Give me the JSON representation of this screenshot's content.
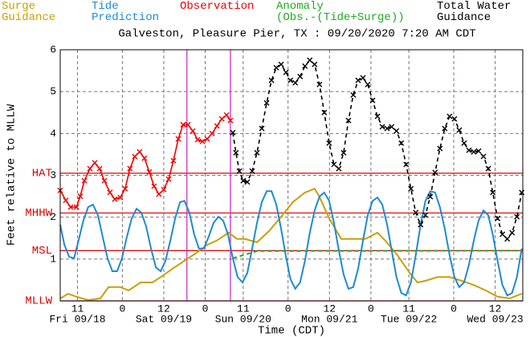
{
  "chart_data": {
    "type": "line",
    "title": "Galveston, Pleasure Pier, TX : 09/20/2020 7:20 AM CDT",
    "xlabel": "Time (CDT)",
    "ylabel": "Feet relative to MLLW",
    "xlim": [
      6,
      140
    ],
    "ylim": [
      0,
      6
    ],
    "yticks": [
      1,
      2,
      3,
      4,
      5,
      6
    ],
    "xticks": [
      11,
      {
        "value": 24,
        "label": "0"
      },
      {
        "value": 36,
        "label": "12"
      },
      {
        "value": 48,
        "label": "0"
      },
      {
        "value": 59,
        "label": "11"
      },
      {
        "value": 72,
        "label": "0"
      },
      {
        "value": 84,
        "label": "12"
      },
      {
        "value": 96,
        "label": "0"
      },
      {
        "value": 107,
        "label": "11"
      },
      {
        "value": 120,
        "label": "0"
      },
      {
        "value": 132,
        "label": "12"
      }
    ],
    "day_labels": [
      {
        "value": 11,
        "label": "Fri 09/18"
      },
      {
        "value": 36,
        "label": "Sat 09/19"
      },
      {
        "value": 59,
        "label": "Sun 09/20"
      },
      {
        "value": 84,
        "label": "Mon 09/21"
      },
      {
        "value": 107,
        "label": "Tue 09/22"
      },
      {
        "value": 132,
        "label": "Wed 09/23"
      }
    ],
    "grid": true,
    "datums": [
      {
        "name": "HAT",
        "value": 3.05
      },
      {
        "name": "MHHW",
        "value": 2.1
      },
      {
        "name": "MSL",
        "value": 1.2
      },
      {
        "name": "MLLW",
        "value": 0
      }
    ],
    "datum_color": "#dd0000",
    "markers": [
      42.7,
      55.3
    ],
    "marker_color": "#cc33cc",
    "series": [
      {
        "name": "Surge\nGuidance",
        "color": "#c8a000",
        "dash": false,
        "marker": null,
        "x": [
          6,
          8.3,
          10.7,
          14.1,
          17.6,
          20.0,
          23.4,
          25.8,
          29.3,
          32.7,
          35.1,
          38.6,
          42.0,
          45.5,
          48.6,
          51.3,
          54.8,
          57.2,
          59.5,
          63.0,
          66.5,
          70.0,
          73.4,
          76.9,
          79.7,
          81.1,
          83.9,
          87.4,
          90.9,
          94.4,
          97.9,
          100.2,
          103.7,
          107.2,
          109.5,
          111.8,
          115.3,
          118.8,
          122.3,
          125.8,
          129.3,
          132.7,
          136.2,
          139.7
        ],
        "values": [
          0.06,
          0.17,
          0.1,
          0.02,
          0.06,
          0.33,
          0.33,
          0.25,
          0.44,
          0.44,
          0.57,
          0.77,
          0.96,
          1.15,
          1.34,
          1.44,
          1.63,
          1.48,
          1.48,
          1.4,
          1.67,
          2.01,
          2.36,
          2.59,
          2.68,
          2.49,
          1.97,
          1.48,
          1.48,
          1.48,
          1.63,
          1.44,
          1.09,
          0.67,
          0.44,
          0.48,
          0.57,
          0.57,
          0.48,
          0.38,
          0.25,
          0.1,
          0.06,
          0.17
        ]
      },
      {
        "name": "Tide\nPrediction",
        "color": "#1e8ad2",
        "dash": false,
        "marker": null,
        "x": [
          6,
          7.2,
          8.6,
          10.0,
          11.3,
          12.7,
          14.1,
          15.5,
          16.9,
          18.3,
          19.7,
          21.1,
          22.5,
          23.9,
          25.3,
          26.7,
          28.1,
          29.5,
          30.9,
          32.3,
          33.7,
          35.1,
          36.5,
          37.9,
          39.3,
          40.7,
          42.0,
          43.4,
          44.8,
          46.2,
          47.6,
          49.0,
          50.4,
          51.8,
          53.2,
          54.6,
          56.0,
          57.4,
          58.8,
          60.2,
          61.6,
          63.0,
          64.4,
          65.8,
          67.2,
          68.6,
          70.0,
          71.4,
          72.7,
          74.1,
          75.5,
          76.9,
          78.3,
          79.7,
          81.1,
          82.5,
          83.9,
          85.3,
          86.7,
          88.1,
          89.5,
          90.9,
          92.3,
          93.7,
          95.1,
          96.5,
          97.9,
          99.3,
          100.7,
          102.0,
          103.4,
          104.8,
          106.2,
          107.6,
          109.0,
          110.4,
          111.8,
          113.2,
          114.6,
          116.0,
          117.4,
          118.8,
          120.2,
          121.6,
          123.0,
          124.4,
          125.8,
          127.2,
          128.6,
          130.0,
          131.3,
          132.7,
          134.1,
          135.5,
          136.9,
          138.3,
          139.7
        ],
        "values": [
          1.82,
          1.34,
          1.05,
          1.02,
          1.44,
          1.92,
          2.24,
          2.3,
          2.05,
          1.53,
          1.02,
          0.71,
          0.71,
          1.02,
          1.53,
          1.97,
          2.2,
          2.11,
          1.78,
          1.25,
          0.8,
          0.71,
          0.96,
          1.44,
          1.97,
          2.36,
          2.39,
          2.11,
          1.59,
          1.25,
          1.25,
          1.53,
          1.86,
          2.01,
          1.92,
          1.59,
          1.02,
          0.57,
          0.44,
          0.67,
          1.25,
          1.86,
          2.36,
          2.62,
          2.62,
          2.3,
          1.72,
          1.05,
          0.52,
          0.29,
          0.44,
          0.96,
          1.63,
          2.16,
          2.49,
          2.59,
          2.39,
          1.86,
          1.21,
          0.63,
          0.29,
          0.33,
          0.77,
          1.44,
          2.05,
          2.39,
          2.47,
          2.3,
          1.82,
          1.21,
          0.57,
          0.19,
          0.13,
          0.44,
          1.09,
          1.82,
          2.39,
          2.62,
          2.59,
          2.24,
          1.72,
          1.09,
          0.57,
          0.33,
          0.44,
          0.86,
          1.44,
          1.92,
          2.16,
          2.05,
          1.59,
          0.96,
          0.38,
          0.13,
          0.19,
          0.57,
          1.25
        ]
      },
      {
        "name": "Observation",
        "color": "#ee0000",
        "dash": false,
        "marker": "x",
        "x": [
          6,
          7.6,
          9.0,
          10.7,
          11.8,
          13.0,
          14.6,
          16.0,
          17.4,
          18.8,
          20.4,
          21.8,
          23.4,
          24.8,
          26.2,
          27.6,
          29.0,
          30.4,
          31.8,
          33.2,
          34.6,
          36.0,
          37.4,
          38.8,
          40.2,
          41.6,
          43.0,
          44.4,
          45.8,
          47.2,
          48.6,
          50.0,
          51.4,
          52.8,
          54.2,
          55.3
        ],
        "values": [
          2.64,
          2.4,
          2.24,
          2.24,
          2.5,
          2.87,
          3.16,
          3.3,
          3.16,
          2.87,
          2.59,
          2.43,
          2.47,
          2.68,
          3.16,
          3.45,
          3.56,
          3.41,
          3.08,
          2.74,
          2.55,
          2.66,
          2.91,
          3.35,
          3.87,
          4.21,
          4.21,
          4.06,
          3.85,
          3.81,
          3.87,
          4.0,
          4.18,
          4.35,
          4.44,
          4.31
        ]
      },
      {
        "name": "Anomaly\n(Obs.-(Tide+Surge))",
        "color": "#22aa22",
        "dash": true,
        "marker": null,
        "x": [
          56.0,
          63.0,
          139.7
        ],
        "values": [
          1.02,
          1.19,
          1.2
        ]
      },
      {
        "name": "Total Water\nGuidance",
        "color": "#000000",
        "dash": true,
        "marker": "x",
        "x": [
          56.0,
          56.9,
          57.9,
          59.0,
          60.2,
          61.6,
          63.0,
          64.4,
          65.8,
          67.2,
          68.6,
          70.0,
          71.4,
          72.7,
          74.1,
          75.5,
          76.9,
          78.3,
          79.7,
          81.1,
          82.5,
          83.9,
          85.3,
          86.7,
          88.1,
          89.5,
          90.9,
          92.3,
          93.7,
          95.1,
          96.5,
          97.9,
          99.3,
          100.7,
          102.0,
          103.4,
          104.8,
          106.2,
          107.6,
          109.0,
          110.4,
          111.8,
          113.2,
          114.6,
          116.0,
          117.4,
          118.8,
          120.2,
          121.6,
          123.0,
          124.4,
          125.8,
          127.2,
          128.6,
          130.0,
          131.3,
          132.7,
          134.1,
          135.5,
          136.9,
          138.3,
          139.7
        ],
        "values": [
          4.02,
          3.54,
          3.1,
          2.87,
          2.84,
          3.1,
          3.54,
          4.12,
          4.73,
          5.27,
          5.57,
          5.65,
          5.46,
          5.27,
          5.21,
          5.36,
          5.61,
          5.75,
          5.65,
          5.17,
          4.5,
          3.77,
          3.26,
          3.16,
          3.54,
          4.31,
          4.92,
          5.27,
          5.33,
          5.17,
          4.79,
          4.41,
          4.16,
          4.12,
          4.16,
          4.06,
          3.77,
          3.26,
          2.68,
          2.11,
          1.82,
          2.05,
          2.49,
          3.07,
          3.64,
          4.12,
          4.41,
          4.35,
          4.08,
          3.77,
          3.6,
          3.56,
          3.58,
          3.45,
          3.16,
          2.59,
          1.97,
          1.59,
          1.48,
          1.63,
          2.01,
          2.59
        ]
      }
    ]
  }
}
